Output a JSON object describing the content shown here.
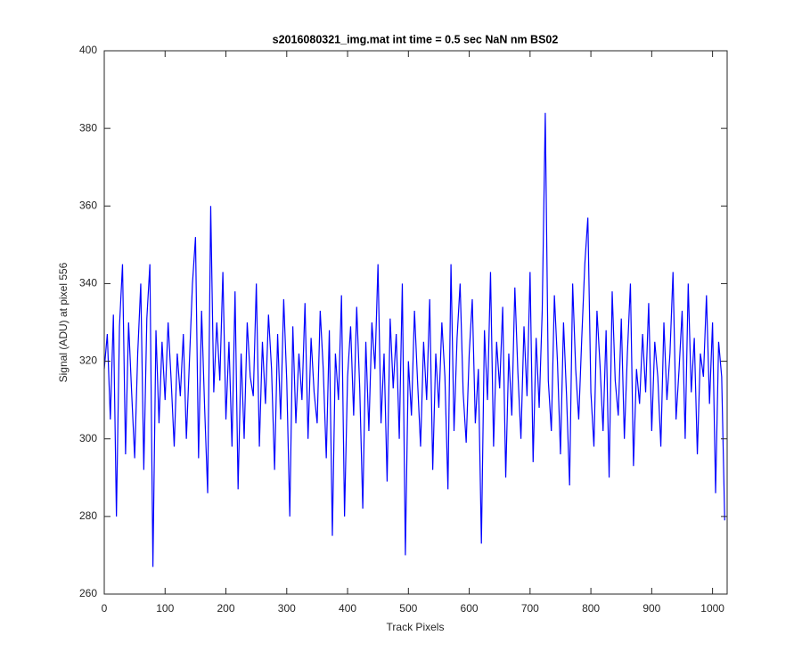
{
  "chart_data": {
    "type": "line",
    "title": "s2016080321_img.mat int time = 0.5 sec  NaN nm BS02",
    "xlabel": "Track Pixels",
    "ylabel": "Signal (ADU) at pixel 556",
    "color": "#0000ff",
    "xlim": [
      0,
      1024
    ],
    "ylim": [
      260,
      400
    ],
    "xticks": [
      0,
      100,
      200,
      300,
      400,
      500,
      600,
      700,
      800,
      900,
      1000
    ],
    "yticks": [
      260,
      280,
      300,
      320,
      340,
      360,
      380,
      400
    ],
    "x": [
      0,
      5,
      10,
      15,
      20,
      25,
      30,
      35,
      40,
      45,
      50,
      55,
      60,
      65,
      70,
      75,
      80,
      85,
      90,
      95,
      100,
      105,
      110,
      115,
      120,
      125,
      130,
      135,
      140,
      145,
      150,
      155,
      160,
      165,
      170,
      175,
      180,
      185,
      190,
      195,
      200,
      205,
      210,
      215,
      220,
      225,
      230,
      235,
      240,
      245,
      250,
      255,
      260,
      265,
      270,
      275,
      280,
      285,
      290,
      295,
      300,
      305,
      310,
      315,
      320,
      325,
      330,
      335,
      340,
      345,
      350,
      355,
      360,
      365,
      370,
      375,
      380,
      385,
      390,
      395,
      400,
      405,
      410,
      415,
      420,
      425,
      430,
      435,
      440,
      445,
      450,
      455,
      460,
      465,
      470,
      475,
      480,
      485,
      490,
      495,
      500,
      505,
      510,
      515,
      520,
      525,
      530,
      535,
      540,
      545,
      550,
      555,
      560,
      565,
      570,
      575,
      580,
      585,
      590,
      595,
      600,
      605,
      610,
      615,
      620,
      625,
      630,
      635,
      640,
      645,
      650,
      655,
      660,
      665,
      670,
      675,
      680,
      685,
      690,
      695,
      700,
      705,
      710,
      715,
      720,
      725,
      730,
      735,
      740,
      745,
      750,
      755,
      760,
      765,
      770,
      775,
      780,
      785,
      790,
      795,
      800,
      805,
      810,
      815,
      820,
      825,
      830,
      835,
      840,
      845,
      850,
      855,
      860,
      865,
      870,
      875,
      880,
      885,
      890,
      895,
      900,
      905,
      910,
      915,
      920,
      925,
      930,
      935,
      940,
      945,
      950,
      955,
      960,
      965,
      970,
      975,
      980,
      985,
      990,
      995,
      1000,
      1005,
      1010,
      1015,
      1020
    ],
    "values": [
      318,
      327,
      305,
      332,
      280,
      329,
      345,
      296,
      330,
      312,
      295,
      322,
      340,
      292,
      331,
      345,
      267,
      328,
      304,
      325,
      310,
      330,
      315,
      298,
      322,
      311,
      327,
      300,
      320,
      340,
      352,
      295,
      333,
      308,
      286,
      360,
      312,
      330,
      315,
      343,
      305,
      325,
      298,
      338,
      287,
      322,
      300,
      330,
      316,
      311,
      340,
      298,
      325,
      309,
      332,
      318,
      292,
      327,
      305,
      336,
      315,
      280,
      329,
      304,
      322,
      310,
      335,
      300,
      326,
      312,
      304,
      333,
      318,
      295,
      328,
      275,
      322,
      310,
      337,
      280,
      316,
      329,
      306,
      334,
      313,
      282,
      325,
      302,
      330,
      318,
      345,
      304,
      322,
      289,
      331,
      313,
      327,
      300,
      340,
      270,
      320,
      306,
      333,
      315,
      298,
      325,
      310,
      336,
      292,
      322,
      308,
      330,
      316,
      287,
      345,
      302,
      326,
      340,
      312,
      299,
      322,
      336,
      304,
      318,
      273,
      328,
      310,
      343,
      298,
      325,
      313,
      334,
      290,
      322,
      306,
      339,
      317,
      300,
      329,
      311,
      343,
      294,
      326,
      308,
      333,
      384,
      315,
      302,
      337,
      320,
      296,
      330,
      311,
      288,
      340,
      318,
      305,
      326,
      345,
      357,
      312,
      298,
      333,
      319,
      302,
      328,
      290,
      338,
      315,
      306,
      331,
      300,
      322,
      340,
      293,
      318,
      309,
      327,
      312,
      335,
      302,
      325,
      316,
      298,
      330,
      310,
      322,
      343,
      305,
      318,
      333,
      300,
      340,
      312,
      326,
      296,
      322,
      316,
      337,
      309,
      330,
      286,
      325,
      316,
      279
    ]
  }
}
